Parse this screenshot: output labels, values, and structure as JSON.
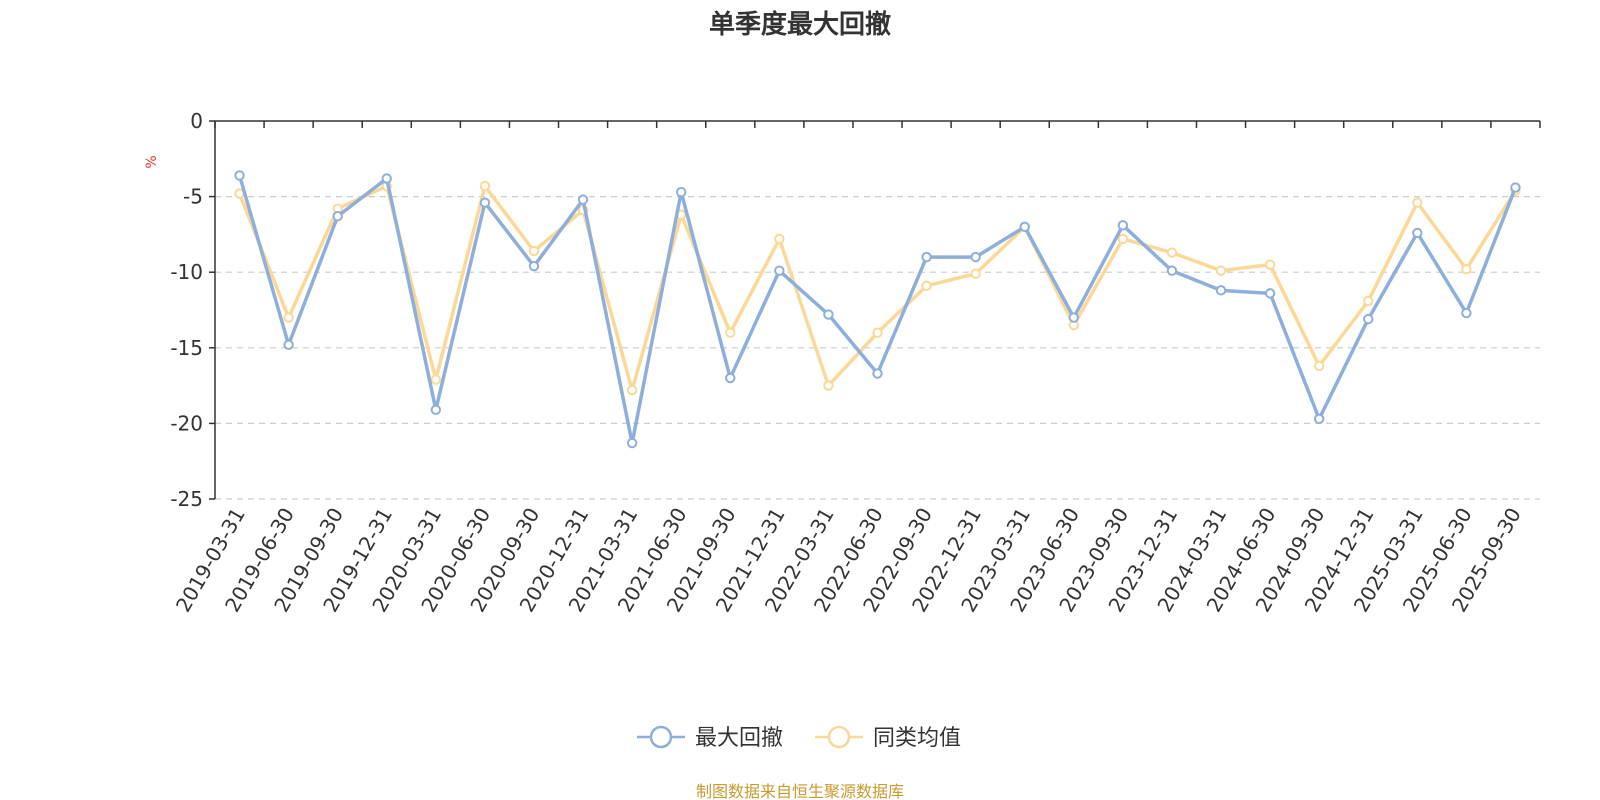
{
  "chart_data": {
    "type": "line",
    "title": "单季度最大回撤",
    "ylabel": "%",
    "ylim": [
      -25,
      0
    ],
    "yticks": [
      0,
      -5,
      -10,
      -15,
      -20,
      -25
    ],
    "grid": true,
    "legend_position": "bottom",
    "categories": [
      "2019-03-31",
      "2019-06-30",
      "2019-09-30",
      "2019-12-31",
      "2020-03-31",
      "2020-06-30",
      "2020-09-30",
      "2020-12-31",
      "2021-03-31",
      "2021-06-30",
      "2021-09-30",
      "2021-12-31",
      "2022-03-31",
      "2022-06-30",
      "2022-09-30",
      "2022-12-31",
      "2023-03-31",
      "2023-06-30",
      "2023-09-30",
      "2023-12-31",
      "2024-03-31",
      "2024-06-30",
      "2024-09-30",
      "2024-12-31",
      "2025-03-31",
      "2025-06-30",
      "2025-09-30"
    ],
    "series": [
      {
        "name": "最大回撤",
        "color": "#8eaedb",
        "values": [
          -3.6,
          -14.8,
          -6.3,
          -3.8,
          -19.1,
          -5.4,
          -9.6,
          -5.2,
          -21.3,
          -4.7,
          -17.0,
          -9.9,
          -12.8,
          -16.7,
          -9.0,
          -9.0,
          -7.0,
          -13.0,
          -6.9,
          -9.9,
          -11.2,
          -11.4,
          -19.7,
          -13.1,
          -7.4,
          -12.7,
          -4.4
        ]
      },
      {
        "name": "同类均值",
        "color": "#fbd897",
        "values": [
          -4.8,
          -13.0,
          -5.8,
          -4.3,
          -17.1,
          -4.3,
          -8.6,
          -5.9,
          -17.8,
          -6.2,
          -14.0,
          -7.8,
          -17.5,
          -14.0,
          -10.9,
          -10.1,
          -7.0,
          -13.5,
          -7.8,
          -8.7,
          -9.9,
          -9.5,
          -16.2,
          -11.9,
          -5.4,
          -9.8,
          -4.6
        ]
      }
    ],
    "source_note": "制图数据来自恒生聚源数据库"
  }
}
